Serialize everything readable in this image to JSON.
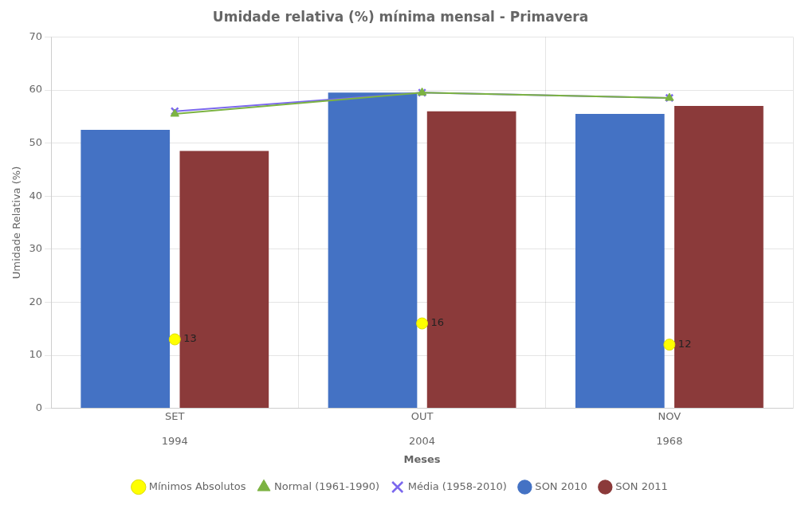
{
  "chart_data": {
    "type": "bar",
    "title": "Umidade relativa (%) mínima mensal - Primavera",
    "xlabel": "Meses",
    "ylabel": "Umidade Relativa (%)",
    "categories": [
      "SET\n\n1994",
      "OUT\n\n2004",
      "NOV\n\n1968"
    ],
    "series": [
      {
        "name": "SON 2010",
        "type": "bar",
        "color": "#4472C4",
        "values": [
          52.5,
          59.5,
          55.5
        ]
      },
      {
        "name": "SON 2011",
        "type": "bar",
        "color": "#8B3A3A",
        "values": [
          48.5,
          56.0,
          57.0
        ]
      },
      {
        "name": "Mínimos Absolutos",
        "type": "scatter",
        "color": "#FFFF00",
        "marker": "circle",
        "line_style": "none",
        "data_labels": true,
        "values": [
          13,
          16,
          12
        ]
      },
      {
        "name": "Normal (1961-1990)",
        "type": "line",
        "color": "#7CB342",
        "marker": "triangle",
        "line_style": "solid",
        "values": [
          55.5,
          59.5,
          58.5
        ]
      },
      {
        "name": "Média (1958-2010)",
        "type": "line",
        "color": "#7B68EE",
        "marker": "x",
        "line_style": "solid",
        "values": [
          56.0,
          59.5,
          58.5
        ]
      }
    ],
    "ylim": [
      0,
      70
    ],
    "yticks": [
      0,
      10,
      20,
      30,
      40,
      50,
      60,
      70
    ],
    "grid": true,
    "legend": "bottom"
  }
}
